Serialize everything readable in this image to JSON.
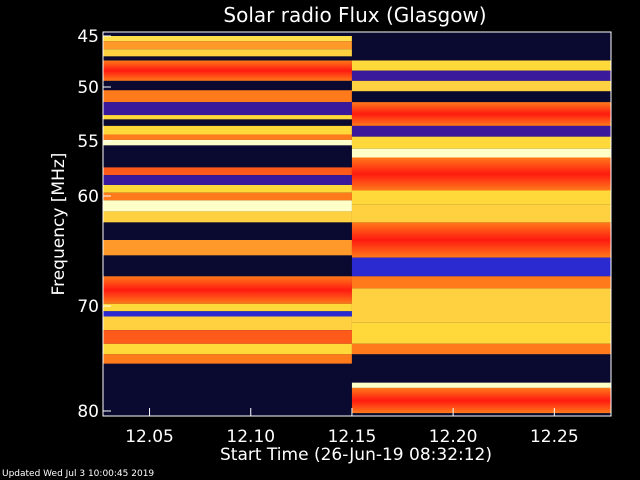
{
  "footer": "Updated Wed Jul  3 10:00:45 2019",
  "chart_data": {
    "type": "heatmap",
    "title": "Solar radio Flux (Glasgow)",
    "xlabel": "Start Time (26-Jun-19 08:32:12)",
    "ylabel": "Frequency [MHz]",
    "x_ticks": [
      12.05,
      12.1,
      12.15,
      12.2,
      12.25
    ],
    "x_tick_labels": [
      "12.05",
      "12.10",
      "12.15",
      "12.20",
      "12.25"
    ],
    "xlim": [
      12.027,
      12.278
    ],
    "y_ticks": [
      45,
      50,
      55,
      60,
      70,
      80
    ],
    "y_tick_labels": [
      "45",
      "50",
      "55",
      "60",
      "70",
      "80"
    ],
    "y_axis_direction": "top-to-bottom",
    "colormap": [
      "#0a0a30",
      "#3a1a9a",
      "#ff1a1a",
      "#ff7a1a",
      "#ffd83a",
      "#ffffc8"
    ],
    "segments": [
      {
        "x_start": 12.027,
        "x_end": 12.15,
        "bands": [
          {
            "f0": 45.0,
            "f1": 45.5,
            "color": "#ffe04a"
          },
          {
            "f0": 45.5,
            "f1": 46.3,
            "color": "#ff9a2a"
          },
          {
            "f0": 46.3,
            "f1": 47.0,
            "color": "#ffd040"
          },
          {
            "f0": 47.0,
            "f1": 47.4,
            "color": "#0a0a30"
          },
          {
            "f0": 47.4,
            "f1": 49.4,
            "color": "#ff3a14",
            "gradient": true
          },
          {
            "f0": 49.4,
            "f1": 50.3,
            "color": "#0a0a30"
          },
          {
            "f0": 50.3,
            "f1": 51.4,
            "color": "#ff7a1a"
          },
          {
            "f0": 51.4,
            "f1": 52.6,
            "color": "#3a1a9a"
          },
          {
            "f0": 52.6,
            "f1": 53.0,
            "color": "#ffd83a"
          },
          {
            "f0": 53.0,
            "f1": 53.6,
            "color": "#0a0a30"
          },
          {
            "f0": 53.6,
            "f1": 54.4,
            "color": "#ffd83a"
          },
          {
            "f0": 54.4,
            "f1": 54.9,
            "color": "#ff7a1a"
          },
          {
            "f0": 54.9,
            "f1": 55.4,
            "color": "#ffffc8"
          },
          {
            "f0": 55.4,
            "f1": 57.4,
            "color": "#0a0a30"
          },
          {
            "f0": 57.4,
            "f1": 58.1,
            "color": "#ff5a1a"
          },
          {
            "f0": 58.1,
            "f1": 59.0,
            "color": "#3a1a9a"
          },
          {
            "f0": 59.0,
            "f1": 59.7,
            "color": "#ffd83a"
          },
          {
            "f0": 59.7,
            "f1": 60.4,
            "color": "#ff7a1a"
          },
          {
            "f0": 60.4,
            "f1": 61.4,
            "color": "#ffffc8"
          },
          {
            "f0": 61.4,
            "f1": 62.4,
            "color": "#ffd040"
          },
          {
            "f0": 62.4,
            "f1": 64.0,
            "color": "#0a0a30"
          },
          {
            "f0": 64.0,
            "f1": 65.4,
            "color": "#ff9a2a"
          },
          {
            "f0": 65.4,
            "f1": 67.3,
            "color": "#0a0a30"
          },
          {
            "f0": 67.3,
            "f1": 69.8,
            "color": "#ff3a14",
            "gradient": true
          },
          {
            "f0": 69.8,
            "f1": 70.5,
            "color": "#ffd83a"
          },
          {
            "f0": 70.5,
            "f1": 71.0,
            "color": "#2a2ad0"
          },
          {
            "f0": 71.0,
            "f1": 72.3,
            "color": "#ffd040"
          },
          {
            "f0": 72.3,
            "f1": 73.6,
            "color": "#ff5a1a"
          },
          {
            "f0": 73.6,
            "f1": 74.6,
            "color": "#ffd83a"
          },
          {
            "f0": 74.6,
            "f1": 75.5,
            "color": "#ff7a1a"
          },
          {
            "f0": 75.5,
            "f1": 80.2,
            "color": "#0a0a30"
          }
        ]
      },
      {
        "x_start": 12.15,
        "x_end": 12.278,
        "bands": [
          {
            "f0": 45.0,
            "f1": 47.4,
            "color": "#0a0a30"
          },
          {
            "f0": 47.4,
            "f1": 48.4,
            "color": "#ffd83a"
          },
          {
            "f0": 48.4,
            "f1": 49.4,
            "color": "#3a1a9a"
          },
          {
            "f0": 49.4,
            "f1": 50.4,
            "color": "#ffd040"
          },
          {
            "f0": 50.4,
            "f1": 51.4,
            "color": "#0a0a30"
          },
          {
            "f0": 51.4,
            "f1": 53.6,
            "color": "#ff3a14",
            "gradient": true
          },
          {
            "f0": 53.6,
            "f1": 54.6,
            "color": "#3a1a9a"
          },
          {
            "f0": 54.6,
            "f1": 55.7,
            "color": "#ffd83a"
          },
          {
            "f0": 55.7,
            "f1": 56.5,
            "color": "#ffffc8"
          },
          {
            "f0": 56.5,
            "f1": 59.5,
            "color": "#ff3a14",
            "gradient": true
          },
          {
            "f0": 59.5,
            "f1": 60.8,
            "color": "#ffd83a"
          },
          {
            "f0": 60.8,
            "f1": 62.4,
            "color": "#ffd040"
          },
          {
            "f0": 62.4,
            "f1": 65.6,
            "color": "#ff3a14",
            "gradient": true
          },
          {
            "f0": 65.6,
            "f1": 67.3,
            "color": "#2a2ad0"
          },
          {
            "f0": 67.3,
            "f1": 68.4,
            "color": "#ff7a1a"
          },
          {
            "f0": 68.4,
            "f1": 71.6,
            "color": "#ffd040"
          },
          {
            "f0": 71.6,
            "f1": 73.6,
            "color": "#ffd83a"
          },
          {
            "f0": 73.6,
            "f1": 74.6,
            "color": "#ff7a1a"
          },
          {
            "f0": 74.6,
            "f1": 77.3,
            "color": "#0a0a30"
          },
          {
            "f0": 77.3,
            "f1": 77.8,
            "color": "#ffffc8"
          },
          {
            "f0": 77.8,
            "f1": 80.2,
            "color": "#ff3a14",
            "gradient": true
          }
        ]
      }
    ]
  }
}
